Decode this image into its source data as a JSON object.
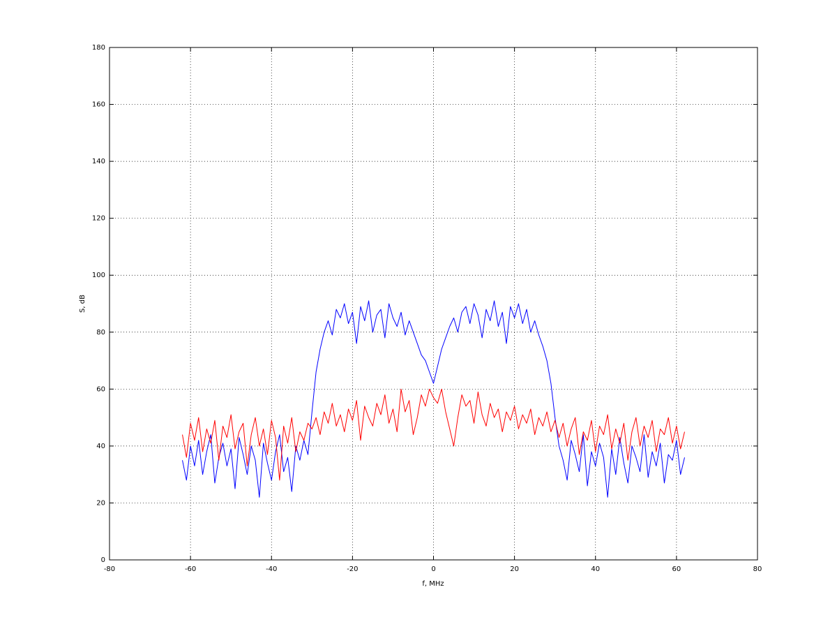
{
  "chart_data": {
    "type": "line",
    "xlabel": "f, MHz",
    "ylabel": "S, dB",
    "x": [
      -62,
      -61,
      -60,
      -59,
      -58,
      -57,
      -56,
      -55,
      -54,
      -53,
      -52,
      -51,
      -50,
      -49,
      -48,
      -47,
      -46,
      -45,
      -44,
      -43,
      -42,
      -41,
      -40,
      -39,
      -38,
      -37,
      -36,
      -35,
      -34,
      -33,
      -32,
      -31,
      -30,
      -29,
      -28,
      -27,
      -26,
      -25,
      -24,
      -23,
      -22,
      -21,
      -20,
      -19,
      -18,
      -17,
      -16,
      -15,
      -14,
      -13,
      -12,
      -11,
      -10,
      -9,
      -8,
      -7,
      -6,
      -5,
      -4,
      -3,
      -2,
      -1,
      0,
      1,
      2,
      3,
      4,
      5,
      6,
      7,
      8,
      9,
      10,
      11,
      12,
      13,
      14,
      15,
      16,
      17,
      18,
      19,
      20,
      21,
      22,
      23,
      24,
      25,
      26,
      27,
      28,
      29,
      30,
      31,
      32,
      33,
      34,
      35,
      36,
      37,
      38,
      39,
      40,
      41,
      42,
      43,
      44,
      45,
      46,
      47,
      48,
      49,
      50,
      51,
      52,
      53,
      54,
      55,
      56,
      57,
      58,
      59,
      60,
      61,
      62
    ],
    "series": [
      {
        "color": "#0000ff",
        "values": [
          35,
          28,
          40,
          33,
          42,
          30,
          38,
          44,
          27,
          36,
          41,
          33,
          39,
          25,
          43,
          37,
          30,
          40,
          35,
          22,
          41,
          34,
          28,
          38,
          44,
          31,
          36,
          24,
          40,
          35,
          42,
          37,
          52,
          66,
          74,
          80,
          84,
          79,
          88,
          85,
          90,
          83,
          87,
          76,
          89,
          84,
          91,
          80,
          86,
          88,
          78,
          90,
          85,
          82,
          87,
          79,
          84,
          80,
          76,
          72,
          70,
          66,
          62,
          68,
          74,
          78,
          82,
          85,
          80,
          87,
          89,
          83,
          90,
          86,
          78,
          88,
          84,
          91,
          82,
          87,
          76,
          89,
          85,
          90,
          83,
          88,
          80,
          84,
          79,
          75,
          70,
          62,
          50,
          40,
          35,
          28,
          42,
          37,
          31,
          44,
          26,
          38,
          33,
          41,
          36,
          22,
          39,
          30,
          43,
          34,
          27,
          40,
          36,
          31,
          44,
          29,
          38,
          33,
          41,
          27,
          37,
          35,
          42,
          30,
          36
        ]
      },
      {
        "color": "#ff0000",
        "values": [
          44,
          36,
          48,
          42,
          50,
          38,
          46,
          41,
          49,
          35,
          47,
          43,
          51,
          39,
          45,
          48,
          33,
          44,
          50,
          40,
          46,
          37,
          49,
          43,
          28,
          47,
          41,
          50,
          38,
          45,
          42,
          48,
          46,
          50,
          44,
          52,
          48,
          55,
          47,
          51,
          45,
          53,
          49,
          56,
          42,
          54,
          50,
          47,
          55,
          51,
          58,
          48,
          53,
          45,
          60,
          52,
          56,
          44,
          50,
          58,
          54,
          60,
          57,
          55,
          60,
          52,
          46,
          40,
          50,
          58,
          54,
          56,
          48,
          59,
          51,
          47,
          55,
          50,
          53,
          45,
          52,
          49,
          54,
          46,
          51,
          48,
          53,
          44,
          50,
          47,
          52,
          45,
          49,
          43,
          48,
          40,
          46,
          50,
          37,
          45,
          42,
          49,
          38,
          47,
          44,
          51,
          39,
          46,
          41,
          48,
          35,
          45,
          50,
          40,
          47,
          43,
          49,
          38,
          46,
          44,
          50,
          41,
          47,
          39,
          45
        ]
      }
    ],
    "xlim": [
      -80,
      80
    ],
    "xticks": [
      -80,
      -60,
      -40,
      -20,
      0,
      20,
      40,
      60,
      80
    ],
    "ylim": [
      0,
      180
    ],
    "yticks": [
      0,
      20,
      40,
      60,
      80,
      100,
      120,
      140,
      160,
      180
    ],
    "grid": true
  }
}
